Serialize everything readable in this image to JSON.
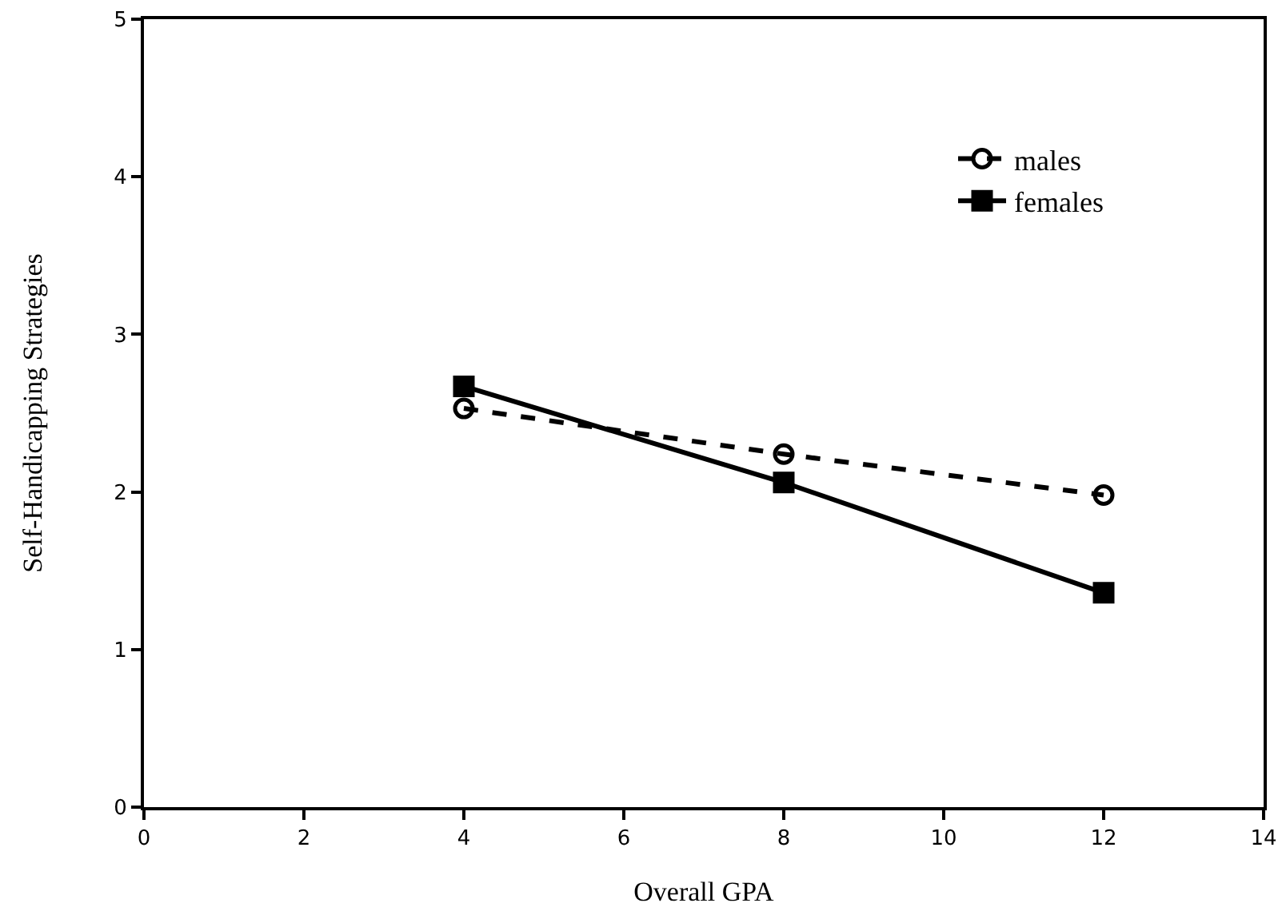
{
  "chart_data": {
    "type": "line",
    "xlabel": "Overall GPA",
    "ylabel": "Self-Handicapping Strategies",
    "x": [
      4,
      8,
      12
    ],
    "series": [
      {
        "name": "males",
        "color": "#000000",
        "values": [
          2.53,
          2.24,
          1.98
        ],
        "marker": "circle",
        "line_style": "dashed"
      },
      {
        "name": "females",
        "color": "#000000",
        "values": [
          2.67,
          2.06,
          1.36
        ],
        "marker": "square",
        "line_style": "solid"
      }
    ],
    "xlim": [
      0,
      14
    ],
    "xticks": [
      0,
      2,
      4,
      6,
      8,
      10,
      12,
      14
    ],
    "ylim": [
      0,
      5
    ],
    "yticks": [
      0,
      1,
      2,
      3,
      4,
      5
    ],
    "grid": false,
    "legend": "top right"
  }
}
